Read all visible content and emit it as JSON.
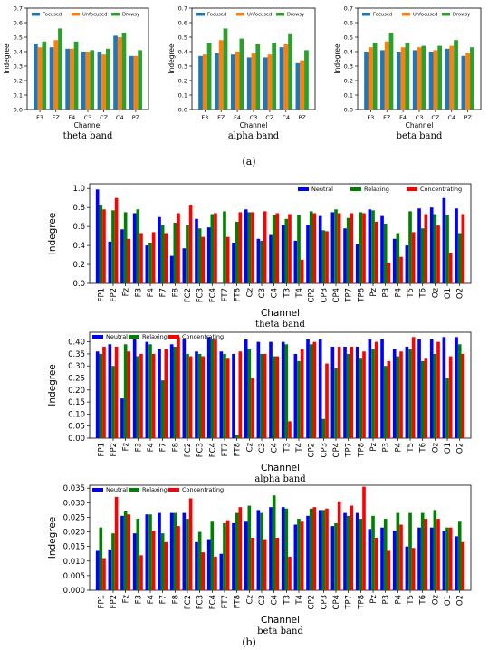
{
  "captions": {
    "a": "(a)",
    "b": "(b)"
  },
  "chart_data": [
    {
      "type": "bar",
      "categories": [
        "F3",
        "FZ",
        "F4",
        "C3",
        "CZ",
        "C4",
        "PZ"
      ],
      "series": [
        {
          "name": "Focused",
          "values": [
            0.45,
            0.43,
            0.42,
            0.4,
            0.4,
            0.51,
            0.37
          ]
        },
        {
          "name": "Unfocused",
          "values": [
            0.43,
            0.48,
            0.42,
            0.4,
            0.38,
            0.5,
            0.37
          ]
        },
        {
          "name": "Drowsy",
          "values": [
            0.47,
            0.56,
            0.47,
            0.41,
            0.42,
            0.53,
            0.41
          ]
        }
      ],
      "xlabel": "Channel",
      "ylabel": "Indegree",
      "ylim": [
        0,
        0.7
      ],
      "yticks": [
        0.0,
        0.1,
        0.2,
        0.3,
        0.4,
        0.5,
        0.6,
        0.7
      ],
      "colors": [
        "#1f77b4",
        "#ff7f0e",
        "#2ca02c"
      ],
      "legend": "top",
      "band_label": "theta band"
    },
    {
      "type": "bar",
      "categories": [
        "F3",
        "FZ",
        "F4",
        "C3",
        "CZ",
        "C4",
        "PZ"
      ],
      "series": [
        {
          "name": "Focused",
          "values": [
            0.37,
            0.39,
            0.38,
            0.36,
            0.36,
            0.43,
            0.32
          ]
        },
        {
          "name": "Unfocused",
          "values": [
            0.38,
            0.48,
            0.4,
            0.39,
            0.38,
            0.45,
            0.34
          ]
        },
        {
          "name": "Drowsy",
          "values": [
            0.46,
            0.56,
            0.49,
            0.45,
            0.46,
            0.52,
            0.41
          ]
        }
      ],
      "xlabel": "Channel",
      "ylabel": "Indegree",
      "ylim": [
        0,
        0.7
      ],
      "yticks": [
        0.0,
        0.1,
        0.2,
        0.3,
        0.4,
        0.5,
        0.6,
        0.7
      ],
      "colors": [
        "#1f77b4",
        "#ff7f0e",
        "#2ca02c"
      ],
      "legend": "top",
      "band_label": "alpha band"
    },
    {
      "type": "bar",
      "categories": [
        "F3",
        "FZ",
        "F4",
        "C3",
        "CZ",
        "C4",
        "PZ"
      ],
      "series": [
        {
          "name": "Focused",
          "values": [
            0.4,
            0.41,
            0.4,
            0.41,
            0.4,
            0.42,
            0.37
          ]
        },
        {
          "name": "Unfocused",
          "values": [
            0.43,
            0.47,
            0.43,
            0.43,
            0.41,
            0.44,
            0.39
          ]
        },
        {
          "name": "Drowsy",
          "values": [
            0.46,
            0.53,
            0.46,
            0.44,
            0.44,
            0.48,
            0.43
          ]
        }
      ],
      "xlabel": "Channel",
      "ylabel": "Indegree",
      "ylim": [
        0,
        0.7
      ],
      "yticks": [
        0.0,
        0.1,
        0.2,
        0.3,
        0.4,
        0.5,
        0.6,
        0.7
      ],
      "colors": [
        "#1f77b4",
        "#ff7f0e",
        "#2ca02c"
      ],
      "legend": "top",
      "band_label": "beta band"
    },
    {
      "type": "bar",
      "categories": [
        "FP1",
        "FP2",
        "Fz",
        "F3",
        "F4",
        "F7",
        "F8",
        "FC2",
        "FC3",
        "FC4",
        "FT7",
        "FT8",
        "Cz",
        "C3",
        "C4",
        "T3",
        "T4",
        "CP2",
        "CP3",
        "CP4",
        "TP7",
        "TP8",
        "Pz",
        "P3",
        "P4",
        "T5",
        "T6",
        "Oz",
        "O1",
        "O2"
      ],
      "series": [
        {
          "name": "Neutral",
          "values": [
            0.99,
            0.44,
            0.57,
            0.74,
            0.4,
            0.7,
            0.29,
            0.37,
            0.68,
            0.59,
            0.005,
            0.43,
            0.78,
            0.47,
            0.51,
            0.62,
            0.45,
            0.62,
            0.71,
            0.75,
            0.58,
            0.41,
            0.78,
            0.71,
            0.47,
            0.4,
            0.79,
            0.8,
            0.9,
            0.79
          ]
        },
        {
          "name": "Relaxing",
          "values": [
            0.83,
            0.77,
            0.75,
            0.78,
            0.43,
            0.62,
            0.64,
            0.62,
            0.58,
            0.73,
            0.76,
            0.65,
            0.75,
            0.45,
            0.72,
            0.68,
            0.72,
            0.76,
            0.56,
            0.78,
            0.69,
            0.75,
            0.77,
            0.63,
            0.53,
            0.76,
            0.58,
            0.73,
            0.72,
            0.53
          ]
        },
        {
          "name": "Concentrating",
          "values": [
            0.78,
            0.9,
            0.47,
            0.53,
            0.54,
            0.53,
            0.74,
            0.83,
            0.49,
            0.74,
            0.49,
            0.75,
            0.75,
            0.76,
            0.74,
            0.73,
            0.25,
            0.74,
            0.55,
            0.74,
            0.74,
            0.74,
            0.65,
            0.22,
            0.28,
            0.54,
            0.73,
            0.61,
            0.32,
            0.73
          ]
        }
      ],
      "xlabel": "Channel",
      "ylabel": "Indegree",
      "ylim": [
        0,
        1.05
      ],
      "yticks": [
        0.0,
        0.2,
        0.4,
        0.6,
        0.8,
        1.0
      ],
      "colors": [
        "#0000ff",
        "#008000",
        "#ff0000"
      ],
      "legend": "top-right",
      "band_label": "theta band"
    },
    {
      "type": "bar",
      "categories": [
        "FP1",
        "FP2",
        "Fz",
        "F3",
        "F4",
        "F7",
        "F8",
        "FC2",
        "FC3",
        "FC4",
        "FT7",
        "FT8",
        "Cz",
        "C3",
        "C4",
        "T3",
        "T4",
        "CP2",
        "CP3",
        "CP4",
        "TP7",
        "TP8",
        "Pz",
        "P3",
        "P4",
        "T5",
        "T6",
        "Oz",
        "O1",
        "O2"
      ],
      "series": [
        {
          "name": "Neutral",
          "values": [
            0.36,
            0.39,
            0.165,
            0.41,
            0.4,
            0.37,
            0.39,
            0.41,
            0.36,
            0.42,
            0.36,
            0.35,
            0.41,
            0.4,
            0.4,
            0.4,
            0.35,
            0.41,
            0.41,
            0.38,
            0.38,
            0.38,
            0.41,
            0.41,
            0.37,
            0.38,
            0.41,
            0.41,
            0.42,
            0.42
          ]
        },
        {
          "name": "Relaxing",
          "values": [
            0.35,
            0.3,
            0.39,
            0.34,
            0.39,
            0.24,
            0.38,
            0.35,
            0.35,
            0.41,
            0.35,
            0.015,
            0.37,
            0.35,
            0.34,
            0.39,
            0.32,
            0.39,
            0.08,
            0.29,
            0.35,
            0.33,
            0.37,
            0.3,
            0.34,
            0.37,
            0.32,
            0.35,
            0.25,
            0.39
          ]
        },
        {
          "name": "Concentrating",
          "values": [
            0.38,
            0.38,
            0.36,
            0.35,
            0.35,
            0.37,
            0.42,
            0.34,
            0.34,
            0.41,
            0.33,
            0.36,
            0.25,
            0.35,
            0.34,
            0.07,
            0.37,
            0.4,
            0.31,
            0.38,
            0.38,
            0.36,
            0.4,
            0.32,
            0.36,
            0.42,
            0.33,
            0.4,
            0.34,
            0.35
          ]
        }
      ],
      "xlabel": "Channel",
      "ylabel": "Indegree",
      "ylim": [
        0,
        0.44
      ],
      "yticks": [
        0.0,
        0.05,
        0.1,
        0.15,
        0.2,
        0.25,
        0.3,
        0.35,
        0.4
      ],
      "colors": [
        "#0000ff",
        "#008000",
        "#ff0000"
      ],
      "legend": "top-left",
      "band_label": "alpha band"
    },
    {
      "type": "bar",
      "categories": [
        "FP1",
        "FP2",
        "Fz",
        "F3",
        "F4",
        "F7",
        "F8",
        "FC2",
        "FC3",
        "FC4",
        "FT7",
        "FT8",
        "Cz",
        "C3",
        "C4",
        "T3",
        "T4",
        "CP2",
        "CP3",
        "CP4",
        "TP7",
        "TP8",
        "Pz",
        "P3",
        "P4",
        "T5",
        "T6",
        "Oz",
        "O1",
        "O2"
      ],
      "series": [
        {
          "name": "Neutral",
          "values": [
            0.0135,
            0.014,
            0.0255,
            0.0195,
            0.026,
            0.0265,
            0.0265,
            0.0265,
            0.0165,
            0.0175,
            0.0125,
            0.023,
            0.0235,
            0.0275,
            0.0285,
            0.0285,
            0.0225,
            0.0255,
            0.0275,
            0.022,
            0.0265,
            0.0265,
            0.021,
            0.0215,
            0.0205,
            0.015,
            0.0215,
            0.0215,
            0.0205,
            0.0185
          ]
        },
        {
          "name": "Relaxing",
          "values": [
            0.0215,
            0.0195,
            0.027,
            0.0245,
            0.026,
            0.0195,
            0.0265,
            0.0245,
            0.02,
            0.0235,
            0.023,
            0.0265,
            0.029,
            0.0265,
            0.0325,
            0.028,
            0.0245,
            0.028,
            0.0275,
            0.023,
            0.0255,
            0.0245,
            0.0255,
            0.0245,
            0.0265,
            0.0265,
            0.0265,
            0.0275,
            0.0215,
            0.0235
          ]
        },
        {
          "name": "Concentrating",
          "values": [
            0.011,
            0.032,
            0.026,
            0.012,
            0.0205,
            0.0165,
            0.022,
            0.0315,
            0.013,
            0.0115,
            0.024,
            0.0285,
            0.018,
            0.0175,
            0.018,
            0.0115,
            0.0235,
            0.0285,
            0.028,
            0.0305,
            0.029,
            0.0355,
            0.018,
            0.0135,
            0.0225,
            0.0145,
            0.0245,
            0.0245,
            0.0215,
            0.0165
          ]
        }
      ],
      "xlabel": "Channel",
      "ylabel": "Indegree",
      "ylim": [
        0,
        0.036
      ],
      "yticks": [
        0.0,
        0.005,
        0.01,
        0.015,
        0.02,
        0.025,
        0.03,
        0.035
      ],
      "colors": [
        "#0000ff",
        "#008000",
        "#ff0000"
      ],
      "legend": "top-left",
      "band_label": "beta band"
    }
  ]
}
